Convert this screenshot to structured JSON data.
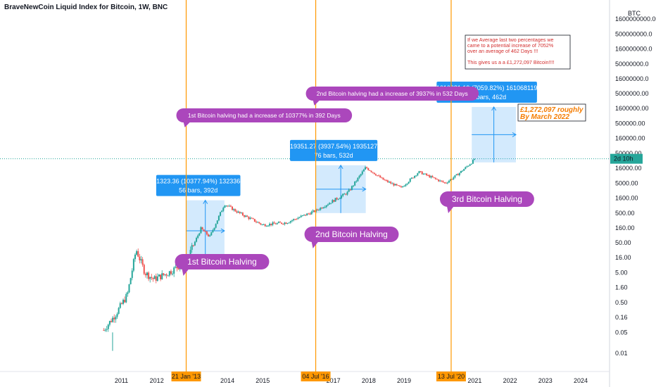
{
  "header": {
    "title": "BraveNewCoin Liquid Index for Bitcoin, 1W, BNC"
  },
  "axis": {
    "currency": "BTC",
    "countdown": "2d 10h"
  },
  "colors": {
    "up": "#26a69a",
    "down": "#ef5350",
    "halving_line": "#ff9800",
    "measure_box": "#2196f3",
    "callout": "#ab47bc",
    "prediction_text": "#f57c00",
    "note_text": "#d32f2f"
  },
  "chart_data": {
    "type": "candlestick",
    "title": "BraveNewCoin Liquid Index for Bitcoin, 1W, BNC",
    "y_scale": "log",
    "ylim": [
      0.01,
      1600000000
    ],
    "xlim": [
      "2010-07",
      "2025-04"
    ],
    "y_ticks": [
      "1600000000.00",
      "500000000.0",
      "160000000.0",
      "50000000.0",
      "16000000.0",
      "5000000.00",
      "1600000.00",
      "500000.00",
      "160000.00",
      "50000.00",
      "16000.00",
      "5000.00",
      "1600.00",
      "500.00",
      "160.00",
      "50.00",
      "16.00",
      "5.00",
      "1.60",
      "0.50",
      "0.16",
      "0.05",
      "0.01"
    ],
    "x_ticks": [
      "2011",
      "2012",
      "2014",
      "2015",
      "2017",
      "2018",
      "2019",
      "2021",
      "2022",
      "2023",
      "2024"
    ],
    "halvings": [
      {
        "date": "2012-11",
        "label": "21 Jan '13",
        "callout": "1st Bitcoin Halving"
      },
      {
        "date": "2016-07",
        "label": "04 Jul '16",
        "callout": "2nd Bitcoin Halving"
      },
      {
        "date": "2020-05",
        "label": "13 Jul '20",
        "callout": "3rd Bitcoin Halving"
      }
    ],
    "price_path": [
      {
        "x": "2010-07",
        "y": 0.06
      },
      {
        "x": "2010-11",
        "y": 0.2
      },
      {
        "x": "2011-03",
        "y": 0.9
      },
      {
        "x": "2011-06",
        "y": 30
      },
      {
        "x": "2011-09",
        "y": 5
      },
      {
        "x": "2011-12",
        "y": 3
      },
      {
        "x": "2012-05",
        "y": 5
      },
      {
        "x": "2012-11",
        "y": 12
      },
      {
        "x": "2013-04",
        "y": 150
      },
      {
        "x": "2013-07",
        "y": 80
      },
      {
        "x": "2013-12",
        "y": 1000
      },
      {
        "x": "2014-05",
        "y": 500
      },
      {
        "x": "2015-01",
        "y": 200
      },
      {
        "x": "2015-09",
        "y": 240
      },
      {
        "x": "2016-07",
        "y": 600
      },
      {
        "x": "2017-06",
        "y": 2500
      },
      {
        "x": "2017-12",
        "y": 17000
      },
      {
        "x": "2018-06",
        "y": 6500
      },
      {
        "x": "2018-12",
        "y": 3500
      },
      {
        "x": "2019-06",
        "y": 12000
      },
      {
        "x": "2020-03",
        "y": 5000
      },
      {
        "x": "2020-07",
        "y": 9500
      },
      {
        "x": "2020-12",
        "y": 25000
      },
      {
        "x": "2021-01",
        "y": 33000
      }
    ],
    "current_price": 33000,
    "measures": [
      {
        "line1": "1323.36 (10377.94%) 132336",
        "line2": "56 bars, 392d",
        "x0": "2012-11",
        "x1": "2013-12",
        "y0": 12,
        "y1": 1340
      },
      {
        "line1": "19351.27 (3937.54%) 1935127",
        "line2": "76 bars, 532d",
        "x0": "2016-07",
        "x1": "2017-12",
        "y0": 500,
        "y1": 20000
      },
      {
        "line1": "1610681.19 (7059.82%) 161068119",
        "line2": "66 bars, 462d",
        "x0": "2020-12",
        "x1": "2022-03",
        "y0": 25000,
        "y1": 1800000
      }
    ],
    "callouts": [
      {
        "text": "1st Bitcoin halving had a increase of 10377% in 392 Days",
        "at": "2012-11"
      },
      {
        "text": "2nd Bitcoin halving had a increase of 3937% in 532 Days",
        "at": "2016-07"
      }
    ],
    "prediction": {
      "line1": "£1,272,097 roughly",
      "line2": "By March 2022"
    },
    "note": {
      "line1": "If we Average last two percentages we",
      "line2": "came to a potential increase of 7052%",
      "line3": "over an average of 462 Days !!!",
      "line4": "This gives us a a £1,272,097 Bitcoin!!!!"
    }
  }
}
